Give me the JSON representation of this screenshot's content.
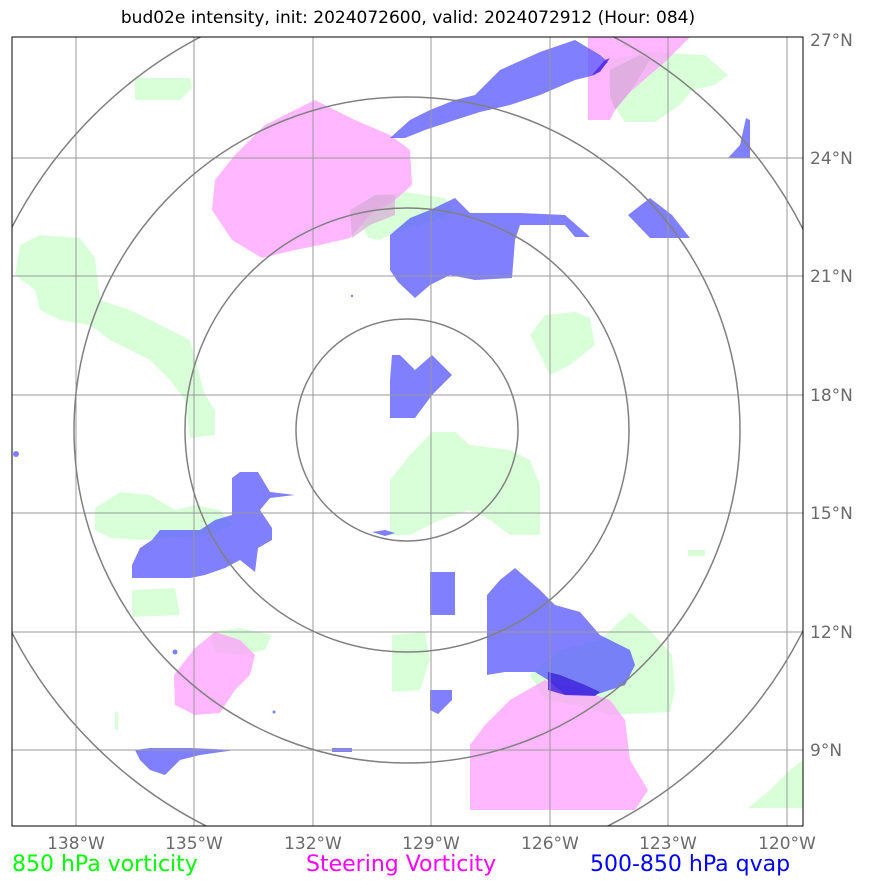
{
  "title": "bud02e intensity, init: 2024072600, valid: 2024072912 (Hour: 084)",
  "axes": {
    "lon_labels": [
      "138°W",
      "135°W",
      "132°W",
      "129°W",
      "126°W",
      "123°W",
      "120°W"
    ],
    "lat_labels": [
      "27°N",
      "24°N",
      "21°N",
      "18°N",
      "15°N",
      "12°N",
      "9°N"
    ]
  },
  "legend": [
    {
      "label": "850 hPa vorticity",
      "color": "#00ff00"
    },
    {
      "label": "Steering Vorticity",
      "color": "#ff00ff"
    },
    {
      "label": "500-850 hPa qvap",
      "color": "#0000ff"
    }
  ],
  "colors": {
    "vorticity_850": "#ccffcc",
    "steering_vorticity": "#ff99ff",
    "qvap": "#5555ff",
    "gridline": "#999999",
    "range_ring": "#808080"
  }
}
